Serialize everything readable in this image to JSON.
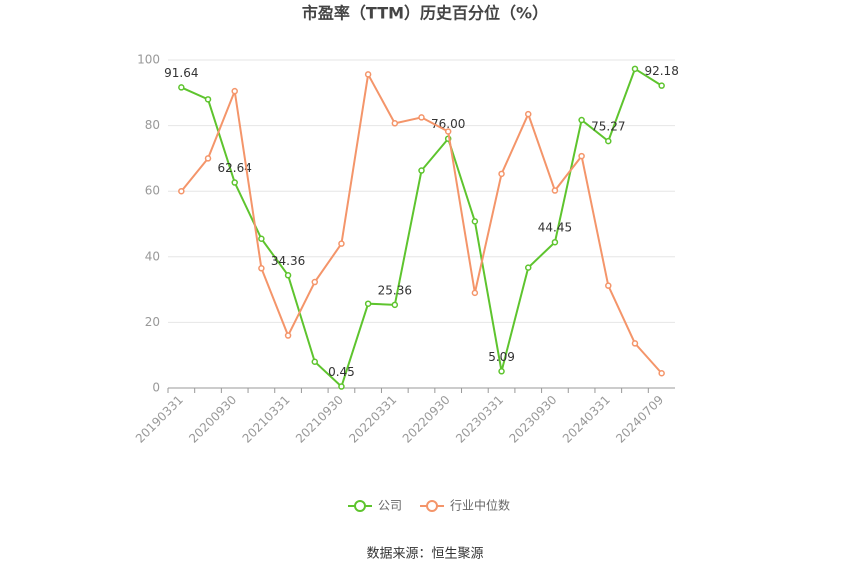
{
  "chart_data": {
    "type": "line",
    "title": "市盈率（TTM）历史百分位（%）",
    "source": "数据来源：恒生聚源",
    "categories": [
      "20190331",
      null,
      "20200930",
      null,
      "20210331",
      null,
      "20210930",
      null,
      "20220331",
      null,
      "20220930",
      null,
      "20230331",
      null,
      "20230930",
      null,
      "20240331",
      null,
      "20240709"
    ],
    "series": [
      {
        "name": "公司",
        "color": "#5ec42e",
        "values": [
          91.64,
          88,
          62.64,
          45.5,
          34.36,
          8,
          0.45,
          25.7,
          25.36,
          66.3,
          76.0,
          50.8,
          5.09,
          36.7,
          44.45,
          81.7,
          75.27,
          97.3,
          92.18
        ],
        "value_labels": [
          "91.64",
          null,
          "62.64",
          null,
          "34.36",
          null,
          "0.45",
          null,
          "25.36",
          null,
          "76.00",
          null,
          "5.09",
          null,
          "44.45",
          null,
          "75.27",
          null,
          "92.18"
        ]
      },
      {
        "name": "行业中位数",
        "color": "#f4956a",
        "values": [
          60,
          70,
          90.5,
          36.5,
          16,
          32.3,
          44,
          95.6,
          80.7,
          82.5,
          78.2,
          29,
          65.3,
          83.5,
          60.2,
          70.7,
          31.2,
          13.6,
          4.5
        ]
      }
    ],
    "ylim": [
      0,
      100
    ],
    "yticks": [
      0,
      20,
      40,
      60,
      80,
      100
    ],
    "grid": true
  }
}
